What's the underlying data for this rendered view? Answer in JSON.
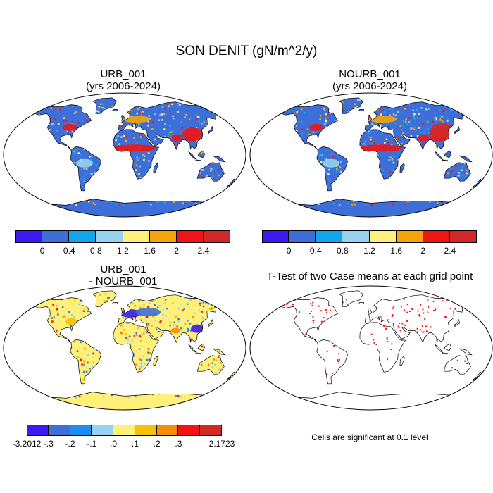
{
  "title": "SON DENIT (gN/m^2/y)",
  "panels": [
    {
      "title_line1": "URB_001",
      "title_line2": "(yrs 2006-2024)"
    },
    {
      "title_line1": "NOURB_001",
      "title_line2": "(yrs 2006-2024)"
    },
    {
      "title_line1": "URB_001",
      "title_line2": "- NOURB_001"
    },
    {
      "title_line1": "T-Test of two Case means at each grid point",
      "title_line2": ""
    }
  ],
  "colorbar_top": {
    "colors": [
      "#3c19f0",
      "#3e6ed8",
      "#14a5f0",
      "#96d2f0",
      "#fff07a",
      "#f5a50a",
      "#f01414",
      "#d22828"
    ],
    "labels": [
      "0",
      "0.4",
      "0.8",
      "1.2",
      "1.6",
      "2",
      "2.4"
    ]
  },
  "colorbar_diff": {
    "colors": [
      "#3c19f0",
      "#3e6ed8",
      "#1e8cf0",
      "#96d2f0",
      "#fff07a",
      "#f5c00a",
      "#f58c0a",
      "#f01414",
      "#d22828"
    ],
    "labels": [
      "-3.2012",
      "-.3",
      "-.2",
      "-.1",
      ".0",
      ".1",
      ".2",
      ".3",
      "2.1723"
    ]
  },
  "significance_note": "Cells are significant at 0.1 level"
}
